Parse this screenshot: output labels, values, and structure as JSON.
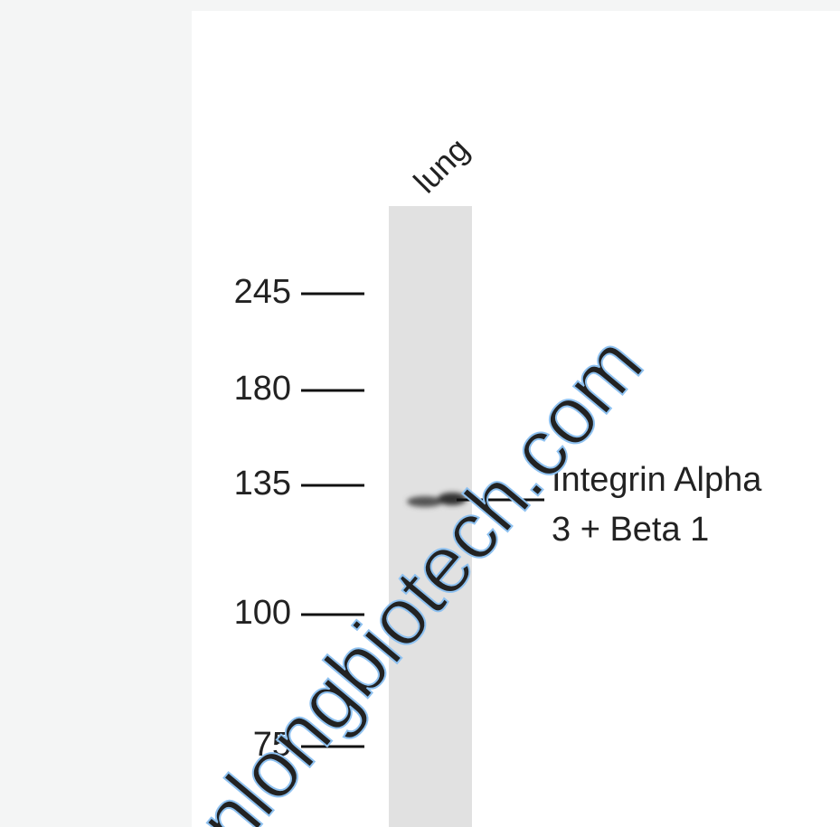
{
  "lane_label": "lung",
  "markers": [
    245,
    180,
    135,
    100,
    75
  ],
  "band_label": [
    "Integrin Alpha",
    "3 + Beta 1"
  ],
  "watermark": "nlongbiotech.com"
}
